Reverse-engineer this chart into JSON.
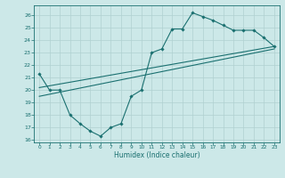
{
  "xlabel": "Humidex (Indice chaleur)",
  "bg_color": "#cce8e8",
  "line_color": "#1a7070",
  "grid_color": "#b0d0d0",
  "xlim": [
    -0.5,
    23.5
  ],
  "ylim": [
    15.8,
    26.8
  ],
  "xticks": [
    0,
    1,
    2,
    3,
    4,
    5,
    6,
    7,
    8,
    9,
    10,
    11,
    12,
    13,
    14,
    15,
    16,
    17,
    18,
    19,
    20,
    21,
    22,
    23
  ],
  "yticks": [
    16,
    17,
    18,
    19,
    20,
    21,
    22,
    23,
    24,
    25,
    26
  ],
  "main_x": [
    0,
    1,
    2,
    3,
    4,
    5,
    6,
    7,
    8,
    9,
    10,
    11,
    12,
    13,
    14,
    15,
    16,
    17,
    18,
    19,
    20,
    21,
    22,
    23
  ],
  "main_y": [
    21.3,
    20.0,
    20.0,
    18.0,
    17.3,
    16.7,
    16.3,
    17.0,
    17.3,
    19.5,
    20.0,
    23.0,
    23.3,
    24.9,
    24.9,
    26.2,
    25.9,
    25.6,
    25.2,
    24.8,
    24.8,
    24.8,
    24.2,
    23.5
  ],
  "trend1_x": [
    0,
    23
  ],
  "trend1_y": [
    19.5,
    23.3
  ],
  "trend2_x": [
    0,
    23
  ],
  "trend2_y": [
    20.2,
    23.5
  ]
}
